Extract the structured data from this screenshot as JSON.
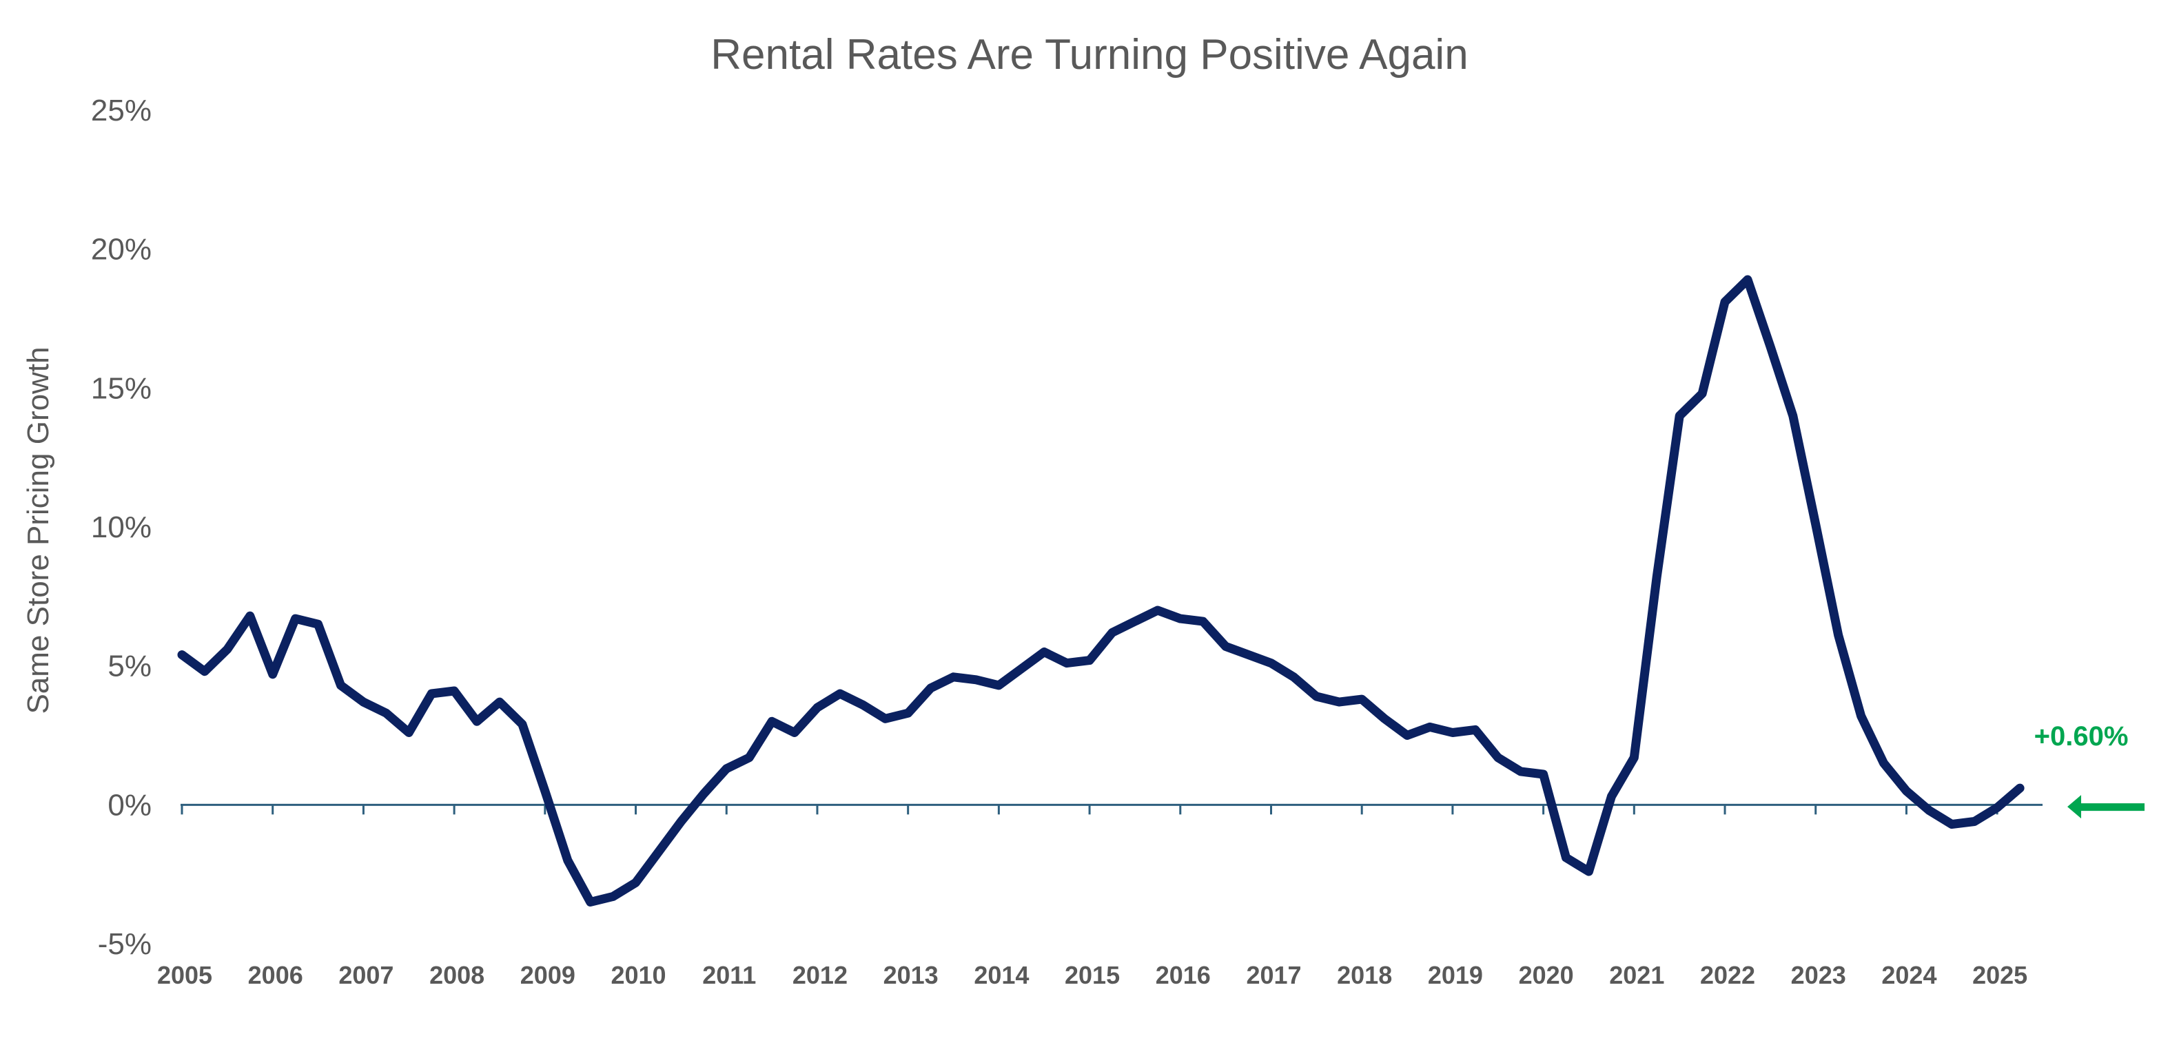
{
  "chart_data": {
    "type": "line",
    "title": "Rental Rates Are Turning Positive Again",
    "xlabel": "",
    "ylabel": "Same Store Pricing Growth",
    "ylim": [
      -5,
      25
    ],
    "xlim": [
      2005,
      2025.5
    ],
    "yticks": [
      -5,
      0,
      5,
      10,
      15,
      20,
      25
    ],
    "ytick_labels": [
      "-5%",
      "0%",
      "5%",
      "10%",
      "15%",
      "20%",
      "25%"
    ],
    "xtick_labels": [
      "2005",
      "2006",
      "2007",
      "2008",
      "2009",
      "2010",
      "2011",
      "2012",
      "2013",
      "2014",
      "2015",
      "2016",
      "2017",
      "2018",
      "2019",
      "2020",
      "2021",
      "2022",
      "2023",
      "2024",
      "2025"
    ],
    "grid": false,
    "colors": {
      "line": "#0b2160",
      "zero_line": "#2e5f7e",
      "annotation": "#00a650",
      "text": "#595959"
    },
    "series": [
      {
        "x": [
          2005.0,
          2005.25,
          2005.5,
          2005.75,
          2006.0,
          2006.25,
          2006.5,
          2006.75,
          2007.0,
          2007.25,
          2007.5,
          2007.75,
          2008.0,
          2008.25,
          2008.5,
          2008.75,
          2009.0,
          2009.25,
          2009.5,
          2009.75,
          2010.0,
          2010.25,
          2010.5,
          2010.75,
          2011.0,
          2011.25,
          2011.5,
          2011.75,
          2012.0,
          2012.25,
          2012.5,
          2012.75,
          2013.0,
          2013.25,
          2013.5,
          2013.75,
          2014.0,
          2014.25,
          2014.5,
          2014.75,
          2015.0,
          2015.25,
          2015.5,
          2015.75,
          2016.0,
          2016.25,
          2016.5,
          2016.75,
          2017.0,
          2017.25,
          2017.5,
          2017.75,
          2018.0,
          2018.25,
          2018.5,
          2018.75,
          2019.0,
          2019.25,
          2019.5,
          2019.75,
          2020.0,
          2020.25,
          2020.5,
          2020.75,
          2021.0,
          2021.25,
          2021.5,
          2021.75,
          2022.0,
          2022.25,
          2022.5,
          2022.75,
          2023.0,
          2023.25,
          2023.5,
          2023.75,
          2024.0,
          2024.25,
          2024.5,
          2024.75,
          2025.0,
          2025.25
        ],
        "values": [
          5.4,
          4.8,
          5.6,
          6.8,
          4.7,
          6.7,
          6.5,
          4.3,
          3.7,
          3.3,
          2.6,
          4.0,
          4.1,
          3.0,
          3.7,
          2.9,
          0.5,
          -2.0,
          -3.5,
          -3.3,
          -2.8,
          -1.7,
          -0.6,
          0.4,
          1.3,
          1.7,
          3.0,
          2.6,
          3.5,
          4.0,
          3.6,
          3.1,
          3.3,
          4.2,
          4.6,
          4.5,
          4.3,
          4.9,
          5.5,
          5.1,
          5.2,
          6.2,
          6.6,
          7.0,
          6.7,
          6.6,
          5.7,
          5.4,
          5.1,
          4.6,
          3.9,
          3.7,
          3.8,
          3.1,
          2.5,
          2.8,
          2.6,
          2.7,
          1.7,
          1.2,
          1.1,
          -1.9,
          -2.4,
          0.3,
          1.7,
          8.2,
          14.0,
          14.8,
          18.1,
          18.9,
          16.5,
          14.0,
          10.1,
          6.1,
          3.2,
          1.5,
          0.5,
          -0.2,
          -0.7,
          -0.6,
          -0.1,
          0.6
        ]
      }
    ],
    "annotation": {
      "text": "+0.60%",
      "value": 0.6
    }
  }
}
